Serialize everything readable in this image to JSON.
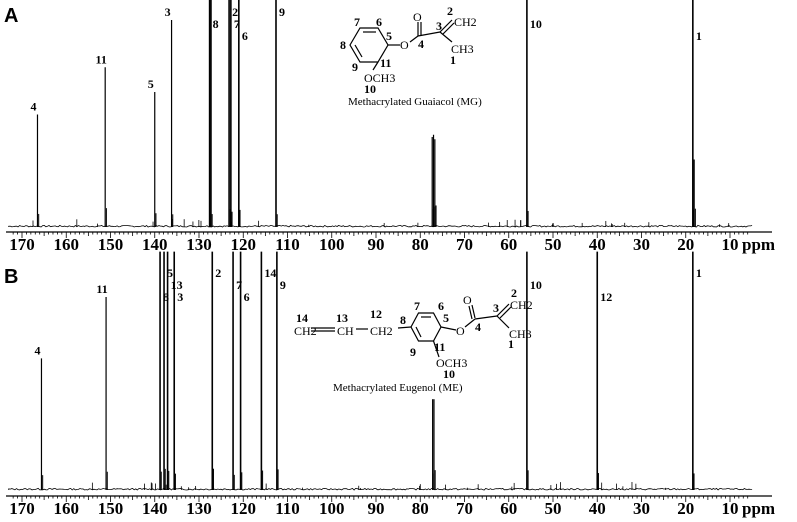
{
  "chart_data": [
    {
      "type": "line",
      "panel_label": "A",
      "xlabel": "ppm",
      "xlim": [
        173,
        5
      ],
      "x_reversed": true,
      "x_ticks": [
        170,
        160,
        150,
        140,
        130,
        120,
        110,
        100,
        90,
        80,
        70,
        60,
        50,
        40,
        30,
        20,
        10
      ],
      "grid": false,
      "peaks": [
        {
          "label": "4",
          "ppm": 166.5,
          "height": 0.5
        },
        {
          "label": "11",
          "ppm": 151.2,
          "height": 0.71
        },
        {
          "label": "5",
          "ppm": 140.0,
          "height": 0.6
        },
        {
          "label": "3",
          "ppm": 136.2,
          "height": 0.92
        },
        {
          "label": "8",
          "ppm": 127.6,
          "height": 1.05
        },
        {
          "label": "",
          "ppm": 127.3,
          "height": 1.05
        },
        {
          "label": "2",
          "ppm": 123.2,
          "height": 1.05
        },
        {
          "label": "7",
          "ppm": 122.8,
          "height": 1.05
        },
        {
          "label": "6",
          "ppm": 121.0,
          "height": 1.05
        },
        {
          "label": "9",
          "ppm": 112.6,
          "height": 1.05
        },
        {
          "label": "",
          "ppm": 77.3,
          "height": 0.4
        },
        {
          "label": "",
          "ppm": 77.0,
          "height": 0.41
        },
        {
          "label": "",
          "ppm": 76.7,
          "height": 0.39
        },
        {
          "label": "10",
          "ppm": 55.9,
          "height": 1.05
        },
        {
          "label": "1",
          "ppm": 18.4,
          "height": 1.05
        },
        {
          "label": "",
          "ppm": 18.1,
          "height": 0.3
        }
      ],
      "structure": {
        "atom_labels": [
          "7",
          "6",
          "8",
          "5",
          "9",
          "11",
          "O",
          "4",
          "O",
          "3",
          "2",
          "CH2",
          "CH3",
          "1",
          "OCH3",
          "10"
        ],
        "caption": "Methacrylated Guaiacol (MG)"
      }
    },
    {
      "type": "line",
      "panel_label": "B",
      "xlabel": "ppm",
      "xlim": [
        173,
        5
      ],
      "x_reversed": true,
      "x_ticks": [
        170,
        160,
        150,
        140,
        130,
        120,
        110,
        100,
        90,
        80,
        70,
        60,
        50,
        40,
        30,
        20,
        10
      ],
      "grid": false,
      "peaks": [
        {
          "label": "4",
          "ppm": 165.6,
          "height": 0.58
        },
        {
          "label": "11",
          "ppm": 151.0,
          "height": 0.85
        },
        {
          "label": "8",
          "ppm": 138.8,
          "height": 1.05
        },
        {
          "label": "5",
          "ppm": 137.9,
          "height": 1.05
        },
        {
          "label": "13",
          "ppm": 137.1,
          "height": 1.05
        },
        {
          "label": "3",
          "ppm": 135.6,
          "height": 1.05
        },
        {
          "label": "2",
          "ppm": 127.0,
          "height": 1.05
        },
        {
          "label": "7",
          "ppm": 122.3,
          "height": 1.05
        },
        {
          "label": "6",
          "ppm": 120.6,
          "height": 1.05
        },
        {
          "label": "14",
          "ppm": 115.9,
          "height": 1.05
        },
        {
          "label": "9",
          "ppm": 112.4,
          "height": 1.05
        },
        {
          "label": "",
          "ppm": 77.2,
          "height": 0.4
        },
        {
          "label": "",
          "ppm": 76.9,
          "height": 0.4
        },
        {
          "label": "10",
          "ppm": 55.9,
          "height": 1.05
        },
        {
          "label": "12",
          "ppm": 40.0,
          "height": 1.05
        },
        {
          "label": "1",
          "ppm": 18.4,
          "height": 1.05
        }
      ],
      "structure": {
        "atom_labels": [
          "14",
          "13",
          "12",
          "CH2",
          "CH",
          "CH2",
          "8",
          "7",
          "6",
          "5",
          "9",
          "11",
          "O",
          "4",
          "O",
          "3",
          "2",
          "CH2",
          "CH3",
          "1",
          "OCH3",
          "10"
        ],
        "caption": "Methacrylated Eugenol (ME)"
      }
    }
  ]
}
